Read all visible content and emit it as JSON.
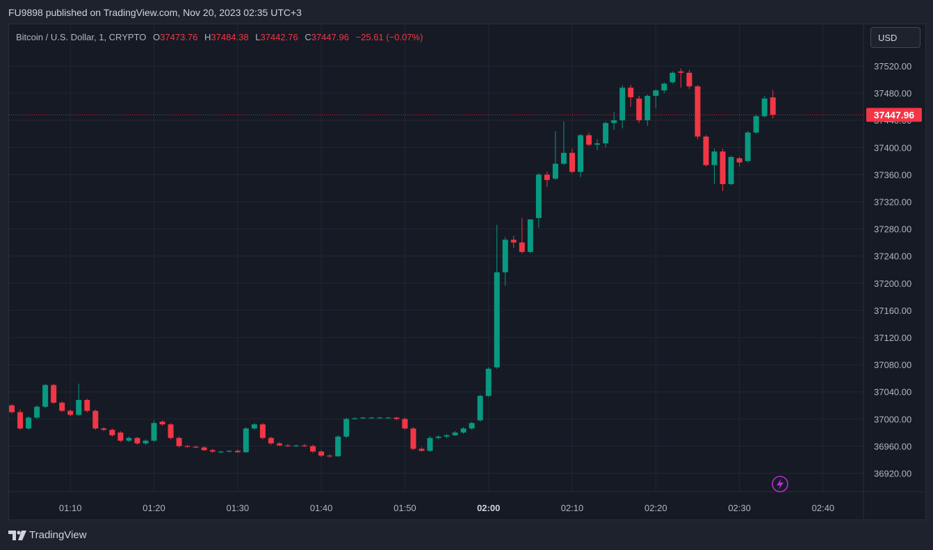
{
  "header": {
    "published_text": "FU9898 published on TradingView.com, Nov 20, 2023 02:35 UTC+3"
  },
  "legend": {
    "symbol": "Bitcoin / U.S. Dollar, 1, CRYPTO",
    "o_label": "O",
    "o_value": "37473.76",
    "h_label": "H",
    "h_value": "37484.38",
    "l_label": "L",
    "l_value": "37442.76",
    "c_label": "C",
    "c_value": "37447.96",
    "change": "−25.61 (−0.07%)"
  },
  "currency_button": {
    "label": "USD"
  },
  "footer": {
    "brand": "TradingView"
  },
  "colors": {
    "up": "#089981",
    "down": "#f23645",
    "background": "#161a25",
    "grid": "#232733",
    "text": "#b2b5be",
    "price_line": "#f23645",
    "alert_icon": "#b52fd3"
  },
  "chart_data": {
    "type": "candlestick",
    "title": "Bitcoin / U.S. Dollar, 1, CRYPTO",
    "x_ticks": [
      {
        "t": 7,
        "label": "01:10",
        "bold": false
      },
      {
        "t": 17,
        "label": "01:20",
        "bold": false
      },
      {
        "t": 27,
        "label": "01:30",
        "bold": false
      },
      {
        "t": 37,
        "label": "01:40",
        "bold": false
      },
      {
        "t": 47,
        "label": "01:50",
        "bold": false
      },
      {
        "t": 57,
        "label": "02:00",
        "bold": true
      },
      {
        "t": 67,
        "label": "02:10",
        "bold": false
      },
      {
        "t": 77,
        "label": "02:20",
        "bold": false
      },
      {
        "t": 87,
        "label": "02:30",
        "bold": false
      },
      {
        "t": 97,
        "label": "02:40",
        "bold": false
      }
    ],
    "y_ticks": [
      36920,
      36960,
      37000,
      37040,
      37080,
      37120,
      37160,
      37200,
      37240,
      37280,
      37320,
      37360,
      37400,
      37440,
      37480,
      37520
    ],
    "y_range": [
      36900,
      37545
    ],
    "t_range": [
      -0.6,
      102
    ],
    "last_price": "37447.96",
    "candles": [
      {
        "t": 0,
        "o": 37020,
        "h": 37022,
        "l": 37008,
        "c": 37010
      },
      {
        "t": 1,
        "o": 37010,
        "h": 37014,
        "l": 36984,
        "c": 36986
      },
      {
        "t": 2,
        "o": 36986,
        "h": 37004,
        "l": 36984,
        "c": 37002
      },
      {
        "t": 3,
        "o": 37002,
        "h": 37020,
        "l": 37000,
        "c": 37018
      },
      {
        "t": 4,
        "o": 37018,
        "h": 37052,
        "l": 37016,
        "c": 37050
      },
      {
        "t": 5,
        "o": 37050,
        "h": 37052,
        "l": 37022,
        "c": 37024
      },
      {
        "t": 6,
        "o": 37024,
        "h": 37026,
        "l": 37010,
        "c": 37012
      },
      {
        "t": 7,
        "o": 37012,
        "h": 37014,
        "l": 37004,
        "c": 37006
      },
      {
        "t": 8,
        "o": 37006,
        "h": 37052,
        "l": 37004,
        "c": 37028
      },
      {
        "t": 9,
        "o": 37028,
        "h": 37030,
        "l": 37010,
        "c": 37012
      },
      {
        "t": 10,
        "o": 37012,
        "h": 37014,
        "l": 36984,
        "c": 36986
      },
      {
        "t": 11,
        "o": 36986,
        "h": 36988,
        "l": 36982,
        "c": 36984
      },
      {
        "t": 12,
        "o": 36984,
        "h": 36986,
        "l": 36974,
        "c": 36976
      },
      {
        "t": 13,
        "o": 36980,
        "h": 36982,
        "l": 36966,
        "c": 36968
      },
      {
        "t": 14,
        "o": 36968,
        "h": 36974,
        "l": 36966,
        "c": 36972
      },
      {
        "t": 15,
        "o": 36972,
        "h": 36974,
        "l": 36962,
        "c": 36964
      },
      {
        "t": 16,
        "o": 36964,
        "h": 36970,
        "l": 36962,
        "c": 36968
      },
      {
        "t": 17,
        "o": 36968,
        "h": 36998,
        "l": 36966,
        "c": 36994
      },
      {
        "t": 18,
        "o": 36996,
        "h": 36998,
        "l": 36990,
        "c": 36992
      },
      {
        "t": 19,
        "o": 36992,
        "h": 36994,
        "l": 36970,
        "c": 36972
      },
      {
        "t": 20,
        "o": 36972,
        "h": 36974,
        "l": 36958,
        "c": 36960
      },
      {
        "t": 21,
        "o": 36960,
        "h": 36962,
        "l": 36958,
        "c": 36959
      },
      {
        "t": 22,
        "o": 36959,
        "h": 36961,
        "l": 36957,
        "c": 36958
      },
      {
        "t": 23,
        "o": 36958,
        "h": 36960,
        "l": 36953,
        "c": 36954
      },
      {
        "t": 24,
        "o": 36954,
        "h": 36956,
        "l": 36950,
        "c": 36952
      },
      {
        "t": 25,
        "o": 36951,
        "h": 36953,
        "l": 36950,
        "c": 36952
      },
      {
        "t": 26,
        "o": 36952,
        "h": 36954,
        "l": 36951,
        "c": 36953
      },
      {
        "t": 27,
        "o": 36953,
        "h": 36955,
        "l": 36950,
        "c": 36951
      },
      {
        "t": 28,
        "o": 36951,
        "h": 36988,
        "l": 36950,
        "c": 36986
      },
      {
        "t": 29,
        "o": 36986,
        "h": 36994,
        "l": 36984,
        "c": 36992
      },
      {
        "t": 30,
        "o": 36992,
        "h": 36994,
        "l": 36970,
        "c": 36972
      },
      {
        "t": 31,
        "o": 36972,
        "h": 36974,
        "l": 36962,
        "c": 36964
      },
      {
        "t": 32,
        "o": 36964,
        "h": 36966,
        "l": 36960,
        "c": 36961
      },
      {
        "t": 33,
        "o": 36961,
        "h": 36963,
        "l": 36959,
        "c": 36960
      },
      {
        "t": 34,
        "o": 36960,
        "h": 36962,
        "l": 36959,
        "c": 36961
      },
      {
        "t": 35,
        "o": 36961,
        "h": 36963,
        "l": 36959,
        "c": 36960
      },
      {
        "t": 36,
        "o": 36960,
        "h": 36962,
        "l": 36950,
        "c": 36952
      },
      {
        "t": 37,
        "o": 36952,
        "h": 36954,
        "l": 36944,
        "c": 36946
      },
      {
        "t": 38,
        "o": 36946,
        "h": 36948,
        "l": 36943,
        "c": 36945
      },
      {
        "t": 39,
        "o": 36945,
        "h": 36976,
        "l": 36944,
        "c": 36974
      },
      {
        "t": 40,
        "o": 36974,
        "h": 37002,
        "l": 36972,
        "c": 37000
      },
      {
        "t": 41,
        "o": 37000,
        "h": 37002,
        "l": 36999,
        "c": 37001
      },
      {
        "t": 42,
        "o": 37001,
        "h": 37003,
        "l": 37000,
        "c": 37002
      },
      {
        "t": 43,
        "o": 37002,
        "h": 37003,
        "l": 37001,
        "c": 37002
      },
      {
        "t": 44,
        "o": 37002,
        "h": 37003,
        "l": 37001,
        "c": 37002
      },
      {
        "t": 45,
        "o": 37002,
        "h": 37003,
        "l": 37001,
        "c": 37002
      },
      {
        "t": 46,
        "o": 37002,
        "h": 37003,
        "l": 36998,
        "c": 37000
      },
      {
        "t": 47,
        "o": 37000,
        "h": 37002,
        "l": 36984,
        "c": 36986
      },
      {
        "t": 48,
        "o": 36986,
        "h": 36988,
        "l": 36954,
        "c": 36956
      },
      {
        "t": 49,
        "o": 36956,
        "h": 36958,
        "l": 36952,
        "c": 36953
      },
      {
        "t": 50,
        "o": 36953,
        "h": 36975,
        "l": 36952,
        "c": 36972
      },
      {
        "t": 51,
        "o": 36972,
        "h": 36976,
        "l": 36970,
        "c": 36974
      },
      {
        "t": 52,
        "o": 36974,
        "h": 36978,
        "l": 36972,
        "c": 36976
      },
      {
        "t": 53,
        "o": 36976,
        "h": 36982,
        "l": 36975,
        "c": 36980
      },
      {
        "t": 54,
        "o": 36980,
        "h": 36988,
        "l": 36978,
        "c": 36986
      },
      {
        "t": 55,
        "o": 36986,
        "h": 36996,
        "l": 36984,
        "c": 36994
      },
      {
        "t": 56,
        "o": 36998,
        "h": 37036,
        "l": 36996,
        "c": 37034
      },
      {
        "t": 57,
        "o": 37034,
        "h": 37076,
        "l": 37032,
        "c": 37074
      },
      {
        "t": 58,
        "o": 37076,
        "h": 37286,
        "l": 37074,
        "c": 37216
      },
      {
        "t": 59,
        "o": 37216,
        "h": 37268,
        "l": 37196,
        "c": 37264
      },
      {
        "t": 60,
        "o": 37264,
        "h": 37270,
        "l": 37252,
        "c": 37260
      },
      {
        "t": 61,
        "o": 37260,
        "h": 37296,
        "l": 37244,
        "c": 37246
      },
      {
        "t": 62,
        "o": 37246,
        "h": 37292,
        "l": 37244,
        "c": 37294
      },
      {
        "t": 63,
        "o": 37296,
        "h": 37362,
        "l": 37282,
        "c": 37360
      },
      {
        "t": 64,
        "o": 37360,
        "h": 37364,
        "l": 37342,
        "c": 37352
      },
      {
        "t": 65,
        "o": 37354,
        "h": 37424,
        "l": 37352,
        "c": 37376
      },
      {
        "t": 66,
        "o": 37376,
        "h": 37438,
        "l": 37374,
        "c": 37392
      },
      {
        "t": 67,
        "o": 37392,
        "h": 37398,
        "l": 37362,
        "c": 37364
      },
      {
        "t": 68,
        "o": 37364,
        "h": 37420,
        "l": 37356,
        "c": 37418
      },
      {
        "t": 69,
        "o": 37418,
        "h": 37422,
        "l": 37402,
        "c": 37404
      },
      {
        "t": 70,
        "o": 37404,
        "h": 37412,
        "l": 37396,
        "c": 37406
      },
      {
        "t": 71,
        "o": 37406,
        "h": 37438,
        "l": 37400,
        "c": 37436
      },
      {
        "t": 72,
        "o": 37436,
        "h": 37452,
        "l": 37426,
        "c": 37440
      },
      {
        "t": 73,
        "o": 37440,
        "h": 37492,
        "l": 37428,
        "c": 37488
      },
      {
        "t": 74,
        "o": 37488,
        "h": 37492,
        "l": 37460,
        "c": 37474
      },
      {
        "t": 75,
        "o": 37472,
        "h": 37476,
        "l": 37436,
        "c": 37440
      },
      {
        "t": 76,
        "o": 37440,
        "h": 37478,
        "l": 37432,
        "c": 37476
      },
      {
        "t": 77,
        "o": 37476,
        "h": 37486,
        "l": 37458,
        "c": 37484
      },
      {
        "t": 78,
        "o": 37484,
        "h": 37496,
        "l": 37480,
        "c": 37494
      },
      {
        "t": 79,
        "o": 37496,
        "h": 37512,
        "l": 37494,
        "c": 37510
      },
      {
        "t": 80,
        "o": 37512,
        "h": 37516,
        "l": 37488,
        "c": 37510
      },
      {
        "t": 81,
        "o": 37510,
        "h": 37514,
        "l": 37486,
        "c": 37490
      },
      {
        "t": 82,
        "o": 37490,
        "h": 37492,
        "l": 37412,
        "c": 37416
      },
      {
        "t": 83,
        "o": 37416,
        "h": 37418,
        "l": 37372,
        "c": 37374
      },
      {
        "t": 84,
        "o": 37374,
        "h": 37398,
        "l": 37346,
        "c": 37394
      },
      {
        "t": 85,
        "o": 37394,
        "h": 37398,
        "l": 37336,
        "c": 37346
      },
      {
        "t": 86,
        "o": 37346,
        "h": 37388,
        "l": 37344,
        "c": 37386
      },
      {
        "t": 87,
        "o": 37384,
        "h": 37386,
        "l": 37372,
        "c": 37378
      },
      {
        "t": 88,
        "o": 37380,
        "h": 37424,
        "l": 37378,
        "c": 37422
      },
      {
        "t": 89,
        "o": 37422,
        "h": 37448,
        "l": 37420,
        "c": 37446
      },
      {
        "t": 90,
        "o": 37446,
        "h": 37476,
        "l": 37444,
        "c": 37472
      },
      {
        "t": 91,
        "o": 37473.76,
        "h": 37484.38,
        "l": 37442.76,
        "c": 37447.96
      }
    ]
  }
}
